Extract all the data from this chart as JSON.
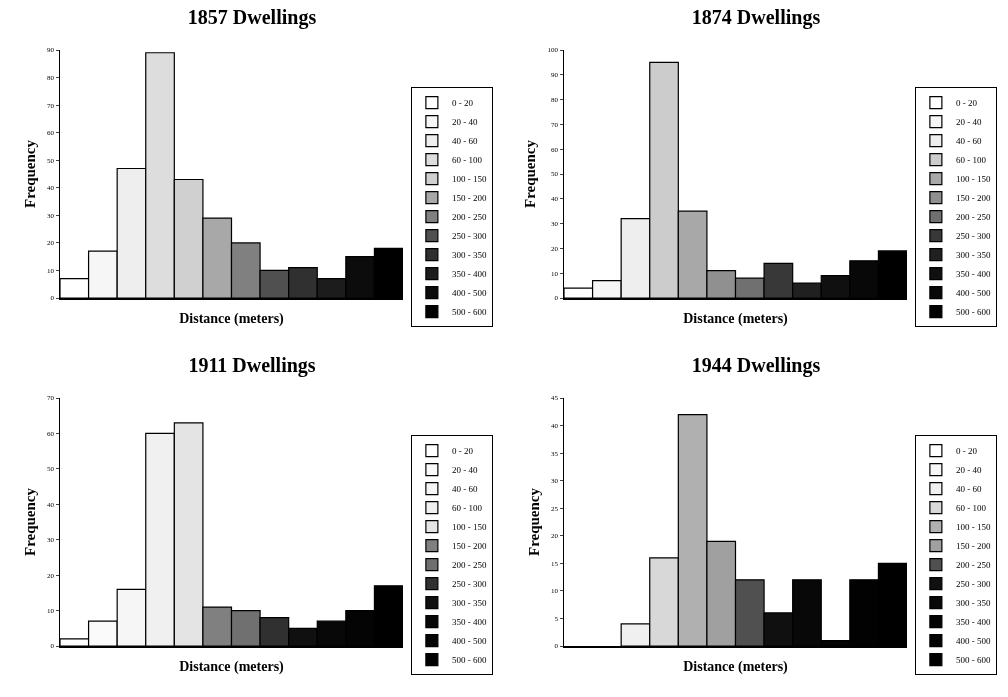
{
  "chart_data": [
    {
      "type": "bar",
      "title": "1857 Dwellings",
      "xlabel": "Distance (meters)",
      "ylabel": "Frequency",
      "categories": [
        null,
        null,
        null,
        null,
        null,
        null,
        null,
        null,
        null,
        null,
        null,
        null
      ],
      "series": [
        {
          "name": "0 - 20",
          "color": "#ffffff",
          "values": [
            7,
            null,
            null,
            null,
            null,
            null,
            null,
            null,
            null,
            null,
            null,
            null
          ]
        },
        {
          "name": "20 - 40",
          "color": "#f6f6f6",
          "values": [
            null,
            17,
            null,
            null,
            null,
            null,
            null,
            null,
            null,
            null,
            null,
            null
          ]
        },
        {
          "name": "40 - 60",
          "color": "#eeeeee",
          "values": [
            null,
            null,
            47,
            null,
            null,
            null,
            null,
            null,
            null,
            null,
            null,
            null
          ]
        },
        {
          "name": "60 - 100",
          "color": "#dddddd",
          "values": [
            null,
            null,
            null,
            89,
            null,
            null,
            null,
            null,
            null,
            null,
            null,
            null
          ]
        },
        {
          "name": "100 - 150",
          "color": "#d0d0d0",
          "values": [
            null,
            null,
            null,
            null,
            43,
            null,
            null,
            null,
            null,
            null,
            null,
            null
          ]
        },
        {
          "name": "150 - 200",
          "color": "#a8a8a8",
          "values": [
            null,
            null,
            null,
            null,
            null,
            29,
            null,
            null,
            null,
            null,
            null,
            null
          ]
        },
        {
          "name": "200 - 250",
          "color": "#808080",
          "values": [
            null,
            null,
            null,
            null,
            null,
            null,
            20,
            null,
            null,
            null,
            null,
            null
          ]
        },
        {
          "name": "250 - 300",
          "color": "#505050",
          "values": [
            null,
            null,
            null,
            null,
            null,
            null,
            null,
            10,
            null,
            null,
            null,
            null
          ]
        },
        {
          "name": "300 - 350",
          "color": "#303030",
          "values": [
            null,
            null,
            null,
            null,
            null,
            null,
            null,
            null,
            11,
            null,
            null,
            null
          ]
        },
        {
          "name": "350 - 400",
          "color": "#1c1c1c",
          "values": [
            null,
            null,
            null,
            null,
            null,
            null,
            null,
            null,
            null,
            7,
            null,
            null
          ]
        },
        {
          "name": "400 - 500",
          "color": "#0c0c0c",
          "values": [
            null,
            null,
            null,
            null,
            null,
            null,
            null,
            null,
            null,
            null,
            15,
            null
          ]
        },
        {
          "name": "500 - 600",
          "color": "#000000",
          "values": [
            null,
            null,
            null,
            null,
            null,
            null,
            null,
            null,
            null,
            null,
            null,
            18
          ]
        }
      ],
      "ylim": [
        0,
        90
      ],
      "yticks": [
        0,
        10,
        20,
        30,
        40,
        50,
        60,
        70,
        80,
        90
      ],
      "tick_labels": "y",
      "legend": "right",
      "grid": false
    },
    {
      "type": "bar",
      "title": "1874 Dwellings",
      "xlabel": "Distance (meters)",
      "ylabel": "Frequency",
      "categories": [
        null,
        null,
        null,
        null,
        null,
        null,
        null,
        null,
        null,
        null,
        null,
        null
      ],
      "series": [
        {
          "name": "0 - 20",
          "color": "#ffffff",
          "values": [
            4,
            null,
            null,
            null,
            null,
            null,
            null,
            null,
            null,
            null,
            null,
            null
          ]
        },
        {
          "name": "20 - 40",
          "color": "#f6f6f6",
          "values": [
            null,
            7,
            null,
            null,
            null,
            null,
            null,
            null,
            null,
            null,
            null,
            null
          ]
        },
        {
          "name": "40 - 60",
          "color": "#eeeeee",
          "values": [
            null,
            null,
            32,
            null,
            null,
            null,
            null,
            null,
            null,
            null,
            null,
            null
          ]
        },
        {
          "name": "60 - 100",
          "color": "#cccccc",
          "values": [
            null,
            null,
            null,
            95,
            null,
            null,
            null,
            null,
            null,
            null,
            null,
            null
          ]
        },
        {
          "name": "100 - 150",
          "color": "#a8a8a8",
          "values": [
            null,
            null,
            null,
            null,
            35,
            null,
            null,
            null,
            null,
            null,
            null,
            null
          ]
        },
        {
          "name": "150 - 200",
          "color": "#909090",
          "values": [
            null,
            null,
            null,
            null,
            null,
            11,
            null,
            null,
            null,
            null,
            null,
            null
          ]
        },
        {
          "name": "200 - 250",
          "color": "#707070",
          "values": [
            null,
            null,
            null,
            null,
            null,
            null,
            8,
            null,
            null,
            null,
            null,
            null
          ]
        },
        {
          "name": "250 - 300",
          "color": "#383838",
          "values": [
            null,
            null,
            null,
            null,
            null,
            null,
            null,
            14,
            null,
            null,
            null,
            null
          ]
        },
        {
          "name": "300 - 350",
          "color": "#202020",
          "values": [
            null,
            null,
            null,
            null,
            null,
            null,
            null,
            null,
            6,
            null,
            null,
            null
          ]
        },
        {
          "name": "350 - 400",
          "color": "#101010",
          "values": [
            null,
            null,
            null,
            null,
            null,
            null,
            null,
            null,
            null,
            9,
            null,
            null
          ]
        },
        {
          "name": "400 - 500",
          "color": "#080808",
          "values": [
            null,
            null,
            null,
            null,
            null,
            null,
            null,
            null,
            null,
            null,
            15,
            null
          ]
        },
        {
          "name": "500 - 600",
          "color": "#000000",
          "values": [
            null,
            null,
            null,
            null,
            null,
            null,
            null,
            null,
            null,
            null,
            null,
            19
          ]
        }
      ],
      "ylim": [
        0,
        100
      ],
      "yticks": [
        0,
        10,
        20,
        30,
        40,
        50,
        60,
        70,
        80,
        90,
        100
      ],
      "tick_labels": "y",
      "legend": "right",
      "grid": false
    },
    {
      "type": "bar",
      "title": "1911 Dwellings",
      "xlabel": "Distance (meters)",
      "ylabel": "Frequency",
      "categories": [
        null,
        null,
        null,
        null,
        null,
        null,
        null,
        null,
        null,
        null,
        null,
        null
      ],
      "series": [
        {
          "name": "0 - 20",
          "color": "#ffffff",
          "values": [
            2,
            null,
            null,
            null,
            null,
            null,
            null,
            null,
            null,
            null,
            null,
            null
          ]
        },
        {
          "name": "20 - 40",
          "color": "#fafafa",
          "values": [
            null,
            7,
            null,
            null,
            null,
            null,
            null,
            null,
            null,
            null,
            null,
            null
          ]
        },
        {
          "name": "40 - 60",
          "color": "#f6f6f6",
          "values": [
            null,
            null,
            16,
            null,
            null,
            null,
            null,
            null,
            null,
            null,
            null,
            null
          ]
        },
        {
          "name": "60 - 100",
          "color": "#f0f0f0",
          "values": [
            null,
            null,
            null,
            60,
            null,
            null,
            null,
            null,
            null,
            null,
            null,
            null
          ]
        },
        {
          "name": "100 - 150",
          "color": "#e4e4e4",
          "values": [
            null,
            null,
            null,
            null,
            63,
            null,
            null,
            null,
            null,
            null,
            null,
            null
          ]
        },
        {
          "name": "150 - 200",
          "color": "#808080",
          "values": [
            null,
            null,
            null,
            null,
            null,
            11,
            null,
            null,
            null,
            null,
            null,
            null
          ]
        },
        {
          "name": "200 - 250",
          "color": "#707070",
          "values": [
            null,
            null,
            null,
            null,
            null,
            null,
            10,
            null,
            null,
            null,
            null,
            null
          ]
        },
        {
          "name": "250 - 300",
          "color": "#303030",
          "values": [
            null,
            null,
            null,
            null,
            null,
            null,
            null,
            8,
            null,
            null,
            null,
            null
          ]
        },
        {
          "name": "300 - 350",
          "color": "#101010",
          "values": [
            null,
            null,
            null,
            null,
            null,
            null,
            null,
            null,
            5,
            null,
            null,
            null
          ]
        },
        {
          "name": "350 - 400",
          "color": "#080808",
          "values": [
            null,
            null,
            null,
            null,
            null,
            null,
            null,
            null,
            null,
            7,
            null,
            null
          ]
        },
        {
          "name": "400 - 500",
          "color": "#040404",
          "values": [
            null,
            null,
            null,
            null,
            null,
            null,
            null,
            null,
            null,
            null,
            10,
            null
          ]
        },
        {
          "name": "500 - 600",
          "color": "#000000",
          "values": [
            null,
            null,
            null,
            null,
            null,
            null,
            null,
            null,
            null,
            null,
            null,
            17
          ]
        }
      ],
      "ylim": [
        0,
        70
      ],
      "yticks": [
        0,
        10,
        20,
        30,
        40,
        50,
        60,
        70
      ],
      "tick_labels": "y",
      "legend": "right",
      "grid": false
    },
    {
      "type": "bar",
      "title": "1944 Dwellings",
      "xlabel": "Distance (meters)",
      "ylabel": "Frequency",
      "categories": [
        null,
        null,
        null,
        null,
        null,
        null,
        null,
        null,
        null,
        null,
        null,
        null
      ],
      "series": [
        {
          "name": "0 - 20",
          "color": "#ffffff",
          "values": [
            null,
            null,
            null,
            null,
            null,
            null,
            null,
            null,
            null,
            null,
            null,
            null
          ]
        },
        {
          "name": "20 - 40",
          "color": "#f6f6f6",
          "values": [
            null,
            null,
            null,
            null,
            null,
            null,
            null,
            null,
            null,
            null,
            null,
            null
          ]
        },
        {
          "name": "40 - 60",
          "color": "#f0f0f0",
          "values": [
            null,
            null,
            4,
            null,
            null,
            null,
            null,
            null,
            null,
            null,
            null,
            null
          ]
        },
        {
          "name": "60 - 100",
          "color": "#d8d8d8",
          "values": [
            null,
            null,
            null,
            16,
            null,
            null,
            null,
            null,
            null,
            null,
            null,
            null
          ]
        },
        {
          "name": "100 - 150",
          "color": "#b0b0b0",
          "values": [
            null,
            null,
            null,
            null,
            42,
            null,
            null,
            null,
            null,
            null,
            null,
            null
          ]
        },
        {
          "name": "150 - 200",
          "color": "#a0a0a0",
          "values": [
            null,
            null,
            null,
            null,
            null,
            19,
            null,
            null,
            null,
            null,
            null,
            null
          ]
        },
        {
          "name": "200 - 250",
          "color": "#505050",
          "values": [
            null,
            null,
            null,
            null,
            null,
            null,
            12,
            null,
            null,
            null,
            null,
            null
          ]
        },
        {
          "name": "250 - 300",
          "color": "#101010",
          "values": [
            null,
            null,
            null,
            null,
            null,
            null,
            null,
            6,
            null,
            null,
            null,
            null
          ]
        },
        {
          "name": "300 - 350",
          "color": "#080808",
          "values": [
            null,
            null,
            null,
            null,
            null,
            null,
            null,
            null,
            12,
            null,
            null,
            null
          ]
        },
        {
          "name": "350 - 400",
          "color": "#040404",
          "values": [
            null,
            null,
            null,
            null,
            null,
            null,
            null,
            null,
            null,
            1,
            null,
            null
          ]
        },
        {
          "name": "400 - 500",
          "color": "#020202",
          "values": [
            null,
            null,
            null,
            null,
            null,
            null,
            null,
            null,
            null,
            null,
            12,
            null
          ]
        },
        {
          "name": "500 - 600",
          "color": "#000000",
          "values": [
            null,
            null,
            null,
            null,
            null,
            null,
            null,
            null,
            null,
            null,
            null,
            15
          ]
        }
      ],
      "ylim": [
        0,
        45
      ],
      "yticks": [
        0,
        5,
        10,
        15,
        20,
        25,
        30,
        35,
        40,
        45
      ],
      "tick_labels": "y",
      "legend": "right",
      "grid": false
    }
  ]
}
